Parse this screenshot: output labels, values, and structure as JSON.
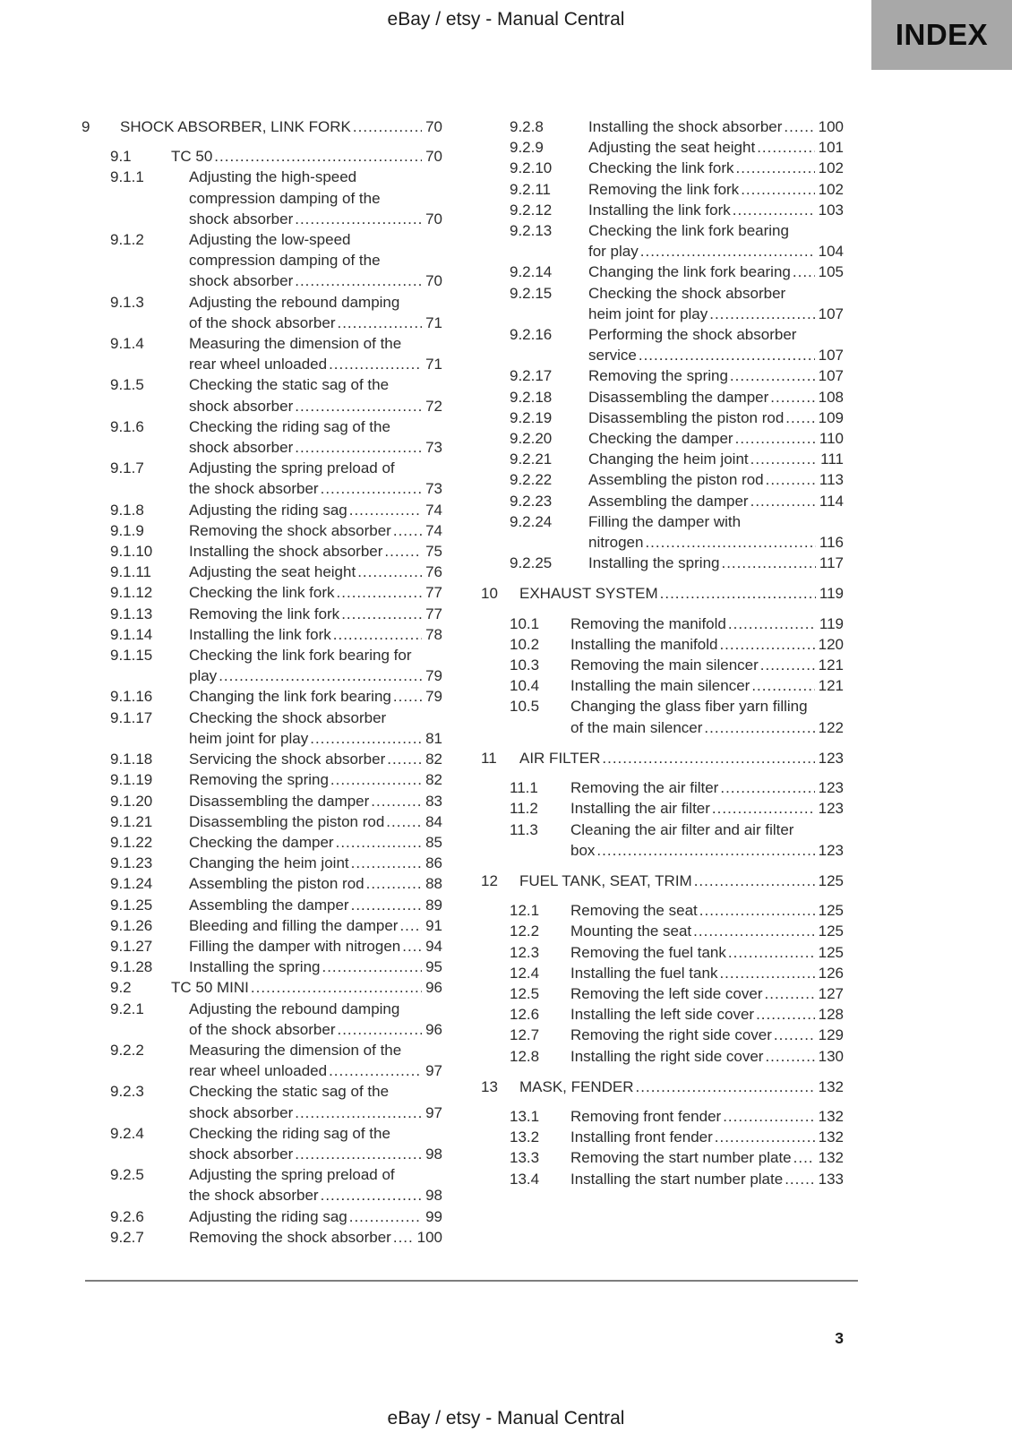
{
  "header": {
    "brand": "eBay / etsy - Manual Central",
    "index_label": "INDEX"
  },
  "footer": {
    "brand": "eBay / etsy - Manual Central",
    "page_number": "3"
  },
  "colors": {
    "index_box_bg": "#a8a8a8",
    "text": "#2c2c2c",
    "rule": "#7d7d7d"
  },
  "toc": {
    "columns": {
      "left": [
        {
          "num": "9",
          "level": 1,
          "lines": [
            "SHOCK ABSORBER, LINK FORK"
          ],
          "page": "70"
        },
        {
          "num": "9.1",
          "level": 2,
          "lines": [
            "TC 50"
          ],
          "page": "70"
        },
        {
          "num": "9.1.1",
          "level": 3,
          "lines": [
            "Adjusting the high-speed",
            "compression damping of the",
            "shock absorber"
          ],
          "page": "70"
        },
        {
          "num": "9.1.2",
          "level": 3,
          "lines": [
            "Adjusting the low-speed",
            "compression damping of the",
            "shock absorber"
          ],
          "page": "70"
        },
        {
          "num": "9.1.3",
          "level": 3,
          "lines": [
            "Adjusting the rebound damping",
            "of the shock absorber"
          ],
          "page": "71"
        },
        {
          "num": "9.1.4",
          "level": 3,
          "lines": [
            "Measuring the dimension of the",
            "rear wheel unloaded"
          ],
          "page": "71"
        },
        {
          "num": "9.1.5",
          "level": 3,
          "lines": [
            "Checking the static sag of the",
            "shock absorber"
          ],
          "page": "72"
        },
        {
          "num": "9.1.6",
          "level": 3,
          "lines": [
            "Checking the riding sag of the",
            "shock absorber"
          ],
          "page": "73"
        },
        {
          "num": "9.1.7",
          "level": 3,
          "lines": [
            "Adjusting the spring preload of",
            "the shock absorber"
          ],
          "page": "73"
        },
        {
          "num": "9.1.8",
          "level": 3,
          "lines": [
            "Adjusting the riding sag"
          ],
          "page": "74"
        },
        {
          "num": "9.1.9",
          "level": 3,
          "lines": [
            "Removing the shock absorber"
          ],
          "page": "74"
        },
        {
          "num": "9.1.10",
          "level": 3,
          "lines": [
            "Installing the shock absorber"
          ],
          "page": "75"
        },
        {
          "num": "9.1.11",
          "level": 3,
          "lines": [
            "Adjusting the seat height"
          ],
          "page": "76"
        },
        {
          "num": "9.1.12",
          "level": 3,
          "lines": [
            "Checking the link fork"
          ],
          "page": "77"
        },
        {
          "num": "9.1.13",
          "level": 3,
          "lines": [
            "Removing the link fork"
          ],
          "page": "77"
        },
        {
          "num": "9.1.14",
          "level": 3,
          "lines": [
            "Installing the link fork"
          ],
          "page": "78"
        },
        {
          "num": "9.1.15",
          "level": 3,
          "lines": [
            "Checking the link fork bearing for",
            "play"
          ],
          "page": "79"
        },
        {
          "num": "9.1.16",
          "level": 3,
          "lines": [
            "Changing the link fork bearing"
          ],
          "page": "79"
        },
        {
          "num": "9.1.17",
          "level": 3,
          "lines": [
            "Checking the shock absorber",
            "heim joint for play"
          ],
          "page": "81"
        },
        {
          "num": "9.1.18",
          "level": 3,
          "lines": [
            "Servicing the shock absorber"
          ],
          "page": "82"
        },
        {
          "num": "9.1.19",
          "level": 3,
          "lines": [
            "Removing the spring"
          ],
          "page": "82"
        },
        {
          "num": "9.1.20",
          "level": 3,
          "lines": [
            "Disassembling the damper"
          ],
          "page": "83"
        },
        {
          "num": "9.1.21",
          "level": 3,
          "lines": [
            "Disassembling the piston rod"
          ],
          "page": "84"
        },
        {
          "num": "9.1.22",
          "level": 3,
          "lines": [
            "Checking the damper"
          ],
          "page": "85"
        },
        {
          "num": "9.1.23",
          "level": 3,
          "lines": [
            "Changing the heim joint"
          ],
          "page": "86"
        },
        {
          "num": "9.1.24",
          "level": 3,
          "lines": [
            "Assembling the piston rod"
          ],
          "page": "88"
        },
        {
          "num": "9.1.25",
          "level": 3,
          "lines": [
            "Assembling the damper"
          ],
          "page": "89"
        },
        {
          "num": "9.1.26",
          "level": 3,
          "lines": [
            "Bleeding and filling the damper"
          ],
          "page": "91"
        },
        {
          "num": "9.1.27",
          "level": 3,
          "lines": [
            "Filling the damper with nitrogen"
          ],
          "page": "94"
        },
        {
          "num": "9.1.28",
          "level": 3,
          "lines": [
            "Installing the spring"
          ],
          "page": "95"
        },
        {
          "num": "9.2",
          "level": 2,
          "lines": [
            "TC 50 MINI"
          ],
          "page": "96"
        },
        {
          "num": "9.2.1",
          "level": 3,
          "lines": [
            "Adjusting the rebound damping",
            "of the shock absorber"
          ],
          "page": "96"
        },
        {
          "num": "9.2.2",
          "level": 3,
          "lines": [
            "Measuring the dimension of the",
            "rear wheel unloaded"
          ],
          "page": "97"
        },
        {
          "num": "9.2.3",
          "level": 3,
          "lines": [
            "Checking the static sag of the",
            "shock absorber"
          ],
          "page": "97"
        },
        {
          "num": "9.2.4",
          "level": 3,
          "lines": [
            "Checking the riding sag of the",
            "shock absorber"
          ],
          "page": "98"
        },
        {
          "num": "9.2.5",
          "level": 3,
          "lines": [
            "Adjusting the spring preload of",
            "the shock absorber"
          ],
          "page": "98"
        },
        {
          "num": "9.2.6",
          "level": 3,
          "lines": [
            "Adjusting the riding sag"
          ],
          "page": "99"
        },
        {
          "num": "9.2.7",
          "level": 3,
          "lines": [
            "Removing the shock absorber"
          ],
          "page": "100"
        }
      ],
      "right": [
        {
          "num": "9.2.8",
          "level": 3,
          "lines": [
            "Installing the shock absorber"
          ],
          "page": "100"
        },
        {
          "num": "9.2.9",
          "level": 3,
          "lines": [
            "Adjusting the seat height"
          ],
          "page": "101"
        },
        {
          "num": "9.2.10",
          "level": 3,
          "lines": [
            "Checking the link fork"
          ],
          "page": "102"
        },
        {
          "num": "9.2.11",
          "level": 3,
          "lines": [
            "Removing the link fork"
          ],
          "page": "102"
        },
        {
          "num": "9.2.12",
          "level": 3,
          "lines": [
            "Installing the link fork"
          ],
          "page": "103"
        },
        {
          "num": "9.2.13",
          "level": 3,
          "lines": [
            "Checking the link fork bearing",
            "for play"
          ],
          "page": "104"
        },
        {
          "num": "9.2.14",
          "level": 3,
          "lines": [
            "Changing the link fork bearing"
          ],
          "page": "105"
        },
        {
          "num": "9.2.15",
          "level": 3,
          "lines": [
            "Checking the shock absorber",
            "heim joint for play"
          ],
          "page": "107"
        },
        {
          "num": "9.2.16",
          "level": 3,
          "lines": [
            "Performing the shock absorber",
            "service"
          ],
          "page": "107"
        },
        {
          "num": "9.2.17",
          "level": 3,
          "lines": [
            "Removing the spring"
          ],
          "page": "107"
        },
        {
          "num": "9.2.18",
          "level": 3,
          "lines": [
            "Disassembling the damper"
          ],
          "page": "108"
        },
        {
          "num": "9.2.19",
          "level": 3,
          "lines": [
            "Disassembling the piston rod"
          ],
          "page": "109"
        },
        {
          "num": "9.2.20",
          "level": 3,
          "lines": [
            "Checking the damper"
          ],
          "page": "110"
        },
        {
          "num": "9.2.21",
          "level": 3,
          "lines": [
            "Changing the heim joint"
          ],
          "page": "111"
        },
        {
          "num": "9.2.22",
          "level": 3,
          "lines": [
            "Assembling the piston rod"
          ],
          "page": "113"
        },
        {
          "num": "9.2.23",
          "level": 3,
          "lines": [
            "Assembling the damper"
          ],
          "page": "114"
        },
        {
          "num": "9.2.24",
          "level": 3,
          "lines": [
            "Filling the damper with",
            "nitrogen"
          ],
          "page": "116"
        },
        {
          "num": "9.2.25",
          "level": 3,
          "lines": [
            "Installing the spring"
          ],
          "page": "117"
        },
        {
          "num": "10",
          "level": 1,
          "lines": [
            "EXHAUST SYSTEM"
          ],
          "page": "119"
        },
        {
          "num": "10.1",
          "level": 2,
          "lines": [
            "Removing the manifold"
          ],
          "page": "119"
        },
        {
          "num": "10.2",
          "level": 2,
          "lines": [
            "Installing the manifold"
          ],
          "page": "120"
        },
        {
          "num": "10.3",
          "level": 2,
          "lines": [
            "Removing the main silencer"
          ],
          "page": "121"
        },
        {
          "num": "10.4",
          "level": 2,
          "lines": [
            "Installing the main silencer"
          ],
          "page": "121"
        },
        {
          "num": "10.5",
          "level": 2,
          "lines": [
            "Changing the glass fiber yarn filling",
            "of the main silencer"
          ],
          "page": "122"
        },
        {
          "num": "11",
          "level": 1,
          "lines": [
            "AIR FILTER"
          ],
          "page": "123"
        },
        {
          "num": "11.1",
          "level": 2,
          "lines": [
            "Removing the air filter"
          ],
          "page": "123"
        },
        {
          "num": "11.2",
          "level": 2,
          "lines": [
            "Installing the air filter"
          ],
          "page": "123"
        },
        {
          "num": "11.3",
          "level": 2,
          "lines": [
            "Cleaning the air filter and air filter",
            "box"
          ],
          "page": "123"
        },
        {
          "num": "12",
          "level": 1,
          "lines": [
            "FUEL TANK, SEAT, TRIM"
          ],
          "page": "125"
        },
        {
          "num": "12.1",
          "level": 2,
          "lines": [
            "Removing the seat"
          ],
          "page": "125"
        },
        {
          "num": "12.2",
          "level": 2,
          "lines": [
            "Mounting the seat"
          ],
          "page": "125"
        },
        {
          "num": "12.3",
          "level": 2,
          "lines": [
            "Removing the fuel tank"
          ],
          "page": "125"
        },
        {
          "num": "12.4",
          "level": 2,
          "lines": [
            "Installing the fuel tank"
          ],
          "page": "126"
        },
        {
          "num": "12.5",
          "level": 2,
          "lines": [
            "Removing the left side cover"
          ],
          "page": "127"
        },
        {
          "num": "12.6",
          "level": 2,
          "lines": [
            "Installing the left side cover"
          ],
          "page": "128"
        },
        {
          "num": "12.7",
          "level": 2,
          "lines": [
            "Removing the right side cover"
          ],
          "page": "129"
        },
        {
          "num": "12.8",
          "level": 2,
          "lines": [
            "Installing the right side cover"
          ],
          "page": "130"
        },
        {
          "num": "13",
          "level": 1,
          "lines": [
            "MASK, FENDER"
          ],
          "page": "132"
        },
        {
          "num": "13.1",
          "level": 2,
          "lines": [
            "Removing front fender"
          ],
          "page": "132"
        },
        {
          "num": "13.2",
          "level": 2,
          "lines": [
            "Installing front fender"
          ],
          "page": "132"
        },
        {
          "num": "13.3",
          "level": 2,
          "lines": [
            "Removing the start number plate"
          ],
          "page": "132"
        },
        {
          "num": "13.4",
          "level": 2,
          "lines": [
            "Installing the start number plate"
          ],
          "page": "133"
        }
      ]
    }
  }
}
